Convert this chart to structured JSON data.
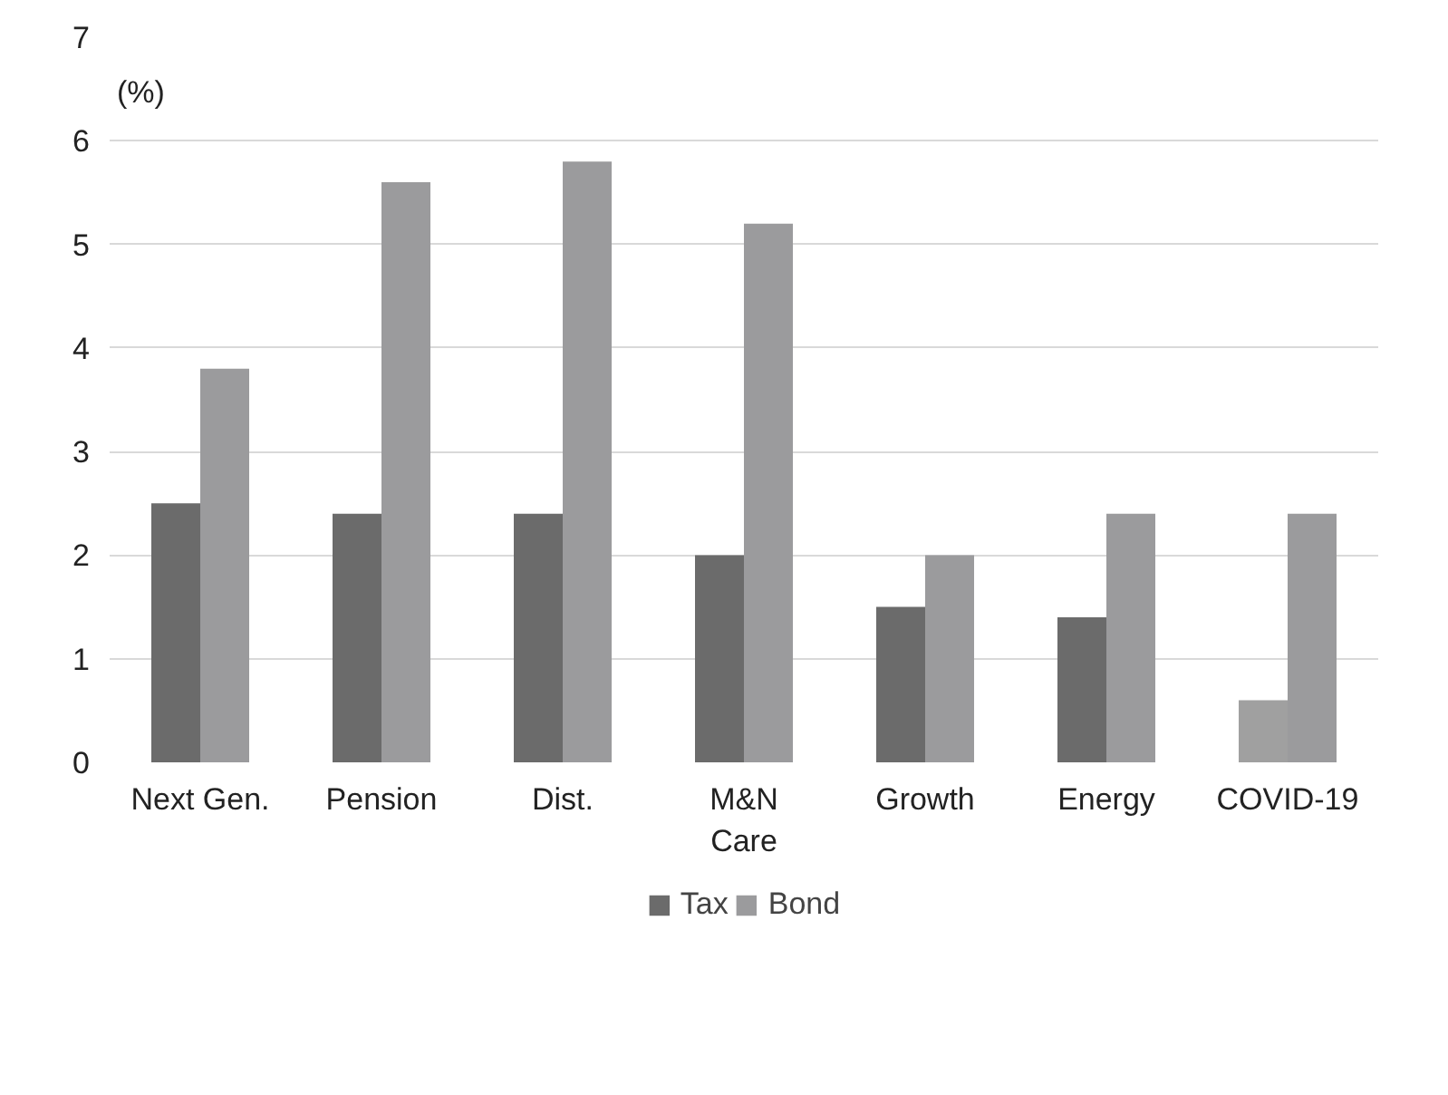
{
  "chart_data": {
    "type": "bar",
    "ylabel": "(%)",
    "categories": [
      "Next Gen.",
      "Pension",
      "Dist.",
      "M&N\nCare",
      "Growth",
      "Energy",
      "COVID-19"
    ],
    "series": [
      {
        "name": "Tax",
        "color": "#6b6b6b",
        "colors": [
          "#6b6b6b",
          "#6b6b6b",
          "#6b6b6b",
          "#6b6b6b",
          "#6b6b6b",
          "#6b6b6b",
          "#a0a0a0"
        ],
        "values": [
          2.5,
          2.4,
          2.4,
          2.0,
          1.5,
          1.4,
          0.6
        ]
      },
      {
        "name": "Bond",
        "color": "#9b9b9d",
        "values": [
          3.8,
          5.6,
          5.8,
          5.2,
          2.0,
          2.4,
          2.4
        ]
      }
    ],
    "ylim": [
      0,
      7
    ],
    "yticks": [
      0,
      1,
      2,
      3,
      4,
      5,
      6,
      7
    ],
    "grid": "y",
    "legend": "bottom"
  }
}
